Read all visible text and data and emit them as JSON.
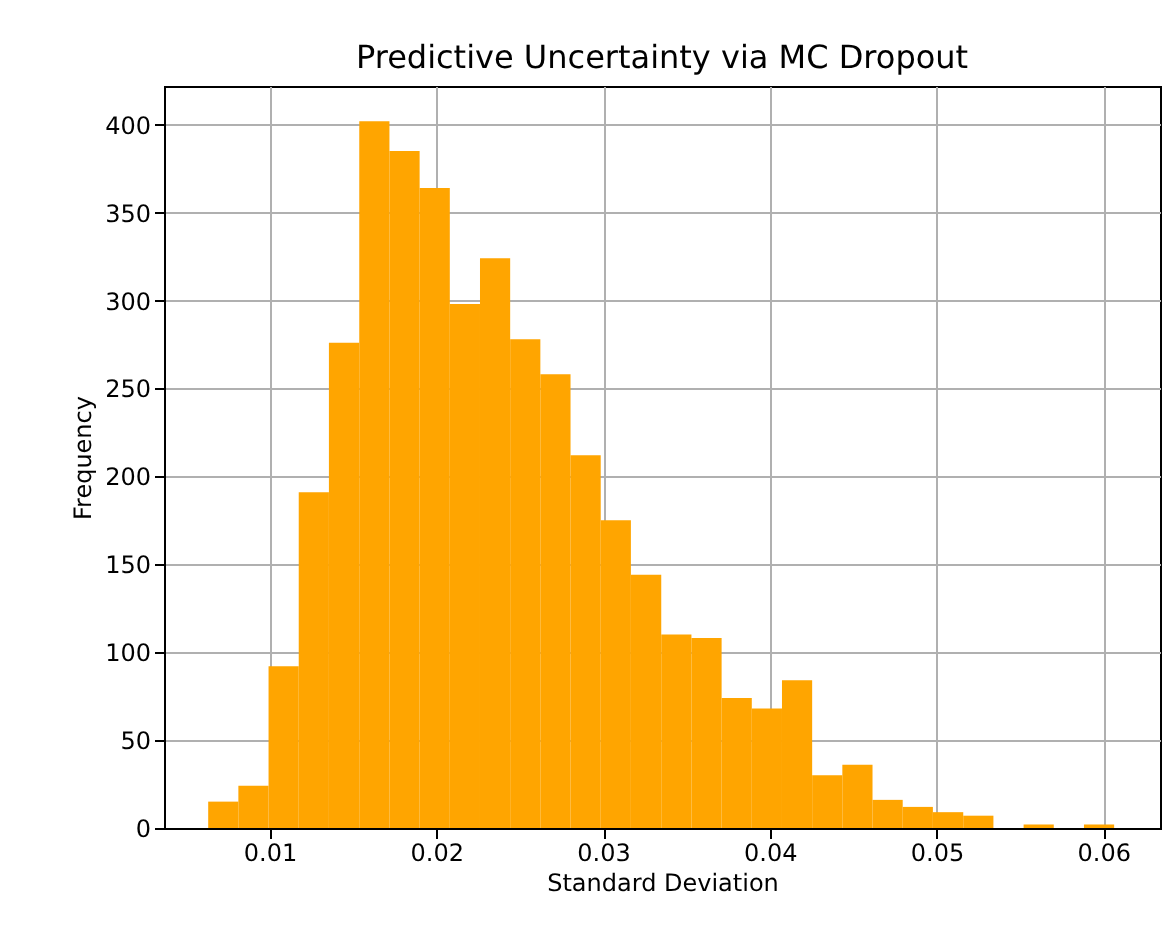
{
  "chart_data": {
    "type": "histogram",
    "title": "Predictive Uncertainty via MC Dropout",
    "xlabel": "Standard Deviation",
    "ylabel": "Frequency",
    "bins": [
      0.00632,
      0.00813,
      0.00994,
      0.01175,
      0.01356,
      0.01538,
      0.01719,
      0.019,
      0.02081,
      0.02262,
      0.02443,
      0.02624,
      0.02805,
      0.02986,
      0.03167,
      0.03349,
      0.0353,
      0.03711,
      0.03892,
      0.04073,
      0.04254,
      0.04435,
      0.04616,
      0.04797,
      0.04978,
      0.0516,
      0.05341,
      0.05522,
      0.05703,
      0.05884,
      0.06065
    ],
    "values": [
      15,
      24,
      92,
      191,
      276,
      402,
      385,
      364,
      298,
      324,
      278,
      258,
      212,
      175,
      144,
      110,
      108,
      74,
      68,
      84,
      30,
      36,
      16,
      12,
      9,
      7,
      0,
      2,
      0,
      2
    ],
    "color": "#ffa500",
    "xlim": [
      0.00367,
      0.0634
    ],
    "xticks": [
      0.01,
      0.02,
      0.03,
      0.04,
      0.05,
      0.06
    ],
    "ylim": [
      0,
      422
    ],
    "yticks": [
      0,
      50,
      100,
      150,
      200,
      250,
      300,
      350,
      400
    ],
    "grid": true
  }
}
